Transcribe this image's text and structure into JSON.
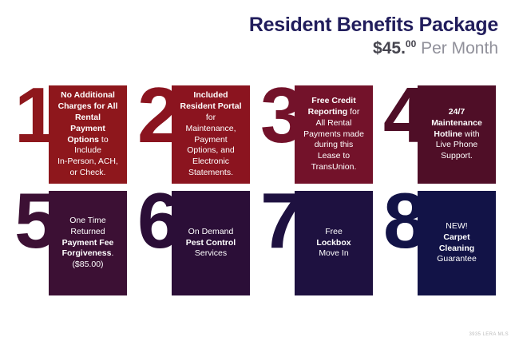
{
  "header": {
    "title": "Resident Benefits Package",
    "price_whole": "$45.",
    "price_cents": "00",
    "price_period": " Per Month",
    "title_color": "#211d5c"
  },
  "tiles": [
    {
      "number": "1",
      "color": "#8e171c",
      "segments": [
        {
          "t": "No Additional\nCharges for All\nRental\nPayment\nOptions",
          "b": true
        },
        {
          "t": " to\nInclude\nIn-Person, ACH,\nor Check.",
          "b": false
        }
      ]
    },
    {
      "number": "2",
      "color": "#8b141f",
      "segments": [
        {
          "t": "Included\nResident Portal",
          "b": true
        },
        {
          "t": "\nfor\nMaintenance,\nPayment\nOptions, and\nElectronic\nStatements.",
          "b": false
        }
      ]
    },
    {
      "number": "3",
      "color": "#73122a",
      "segments": [
        {
          "t": "Free Credit\nReporting",
          "b": true
        },
        {
          "t": " for\nAll Rental\nPayments made\nduring this\nLease to\nTransUnion.",
          "b": false
        }
      ]
    },
    {
      "number": "4",
      "color": "#4f0e27",
      "segments": [
        {
          "t": "24/7\nMaintenance\nHotline",
          "b": true
        },
        {
          "t": " with\nLive Phone\nSupport.",
          "b": false
        }
      ]
    },
    {
      "number": "5",
      "color": "#3c1034",
      "segments": [
        {
          "t": "One Time\nReturned\n",
          "b": false
        },
        {
          "t": "Payment Fee\nForgiveness",
          "b": true
        },
        {
          "t": ".\n($85.00)",
          "b": false
        }
      ]
    },
    {
      "number": "6",
      "color": "#2b0e37",
      "segments": [
        {
          "t": "On Demand\n",
          "b": false
        },
        {
          "t": "Pest Control",
          "b": true
        },
        {
          "t": "\nServices",
          "b": false
        }
      ]
    },
    {
      "number": "7",
      "color": "#1e1140",
      "segments": [
        {
          "t": "Free\n",
          "b": false
        },
        {
          "t": "Lockbox",
          "b": true
        },
        {
          "t": "\nMove In",
          "b": false
        }
      ]
    },
    {
      "number": "8",
      "color": "#121347",
      "segments": [
        {
          "t": "NEW!\n",
          "b": false
        },
        {
          "t": "Carpet\nCleaning",
          "b": true
        },
        {
          "t": "\nGuarantee",
          "b": false
        }
      ]
    }
  ],
  "footer": {
    "watermark": "3935 LERA MLS"
  }
}
